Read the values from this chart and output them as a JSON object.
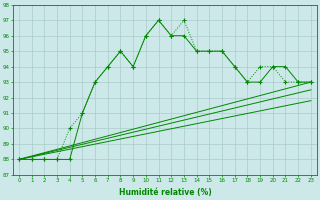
{
  "line1_x": [
    0,
    1,
    2,
    3,
    4,
    5,
    6,
    7,
    8,
    9,
    10,
    11,
    12,
    13,
    14,
    15,
    16,
    17,
    18,
    19,
    20,
    21,
    22,
    23
  ],
  "line1_y": [
    88,
    88,
    88,
    88,
    90,
    91,
    93,
    94,
    95,
    94,
    96,
    97,
    96,
    97,
    95,
    95,
    95,
    94,
    93,
    94,
    94,
    93,
    93,
    93
  ],
  "line2_x": [
    0,
    1,
    2,
    3,
    4,
    5,
    6,
    7,
    8,
    9,
    10,
    11,
    12,
    13,
    14,
    15,
    16,
    17,
    18,
    19,
    20,
    21,
    22,
    23
  ],
  "line2_y": [
    88,
    88,
    88,
    88,
    88,
    91,
    93,
    94,
    95,
    94,
    96,
    97,
    96,
    96,
    95,
    95,
    95,
    94,
    93,
    93,
    94,
    94,
    93,
    93
  ],
  "line3_x": [
    0,
    23
  ],
  "line3_y": [
    88,
    93
  ],
  "line4_x": [
    0,
    23
  ],
  "line4_y": [
    88,
    92.5
  ],
  "line5_x": [
    0,
    23
  ],
  "line5_y": [
    88,
    91.8
  ],
  "xlim": [
    -0.5,
    23.5
  ],
  "ylim": [
    87,
    98
  ],
  "yticks": [
    87,
    88,
    89,
    90,
    91,
    92,
    93,
    94,
    95,
    96,
    97,
    98
  ],
  "xticks": [
    0,
    1,
    2,
    3,
    4,
    5,
    6,
    7,
    8,
    9,
    10,
    11,
    12,
    13,
    14,
    15,
    16,
    17,
    18,
    19,
    20,
    21,
    22,
    23
  ],
  "xlabel": "Humidité relative (%)",
  "line_color": "#008800",
  "bg_color": "#cce8e8",
  "grid_color": "#aacccc"
}
